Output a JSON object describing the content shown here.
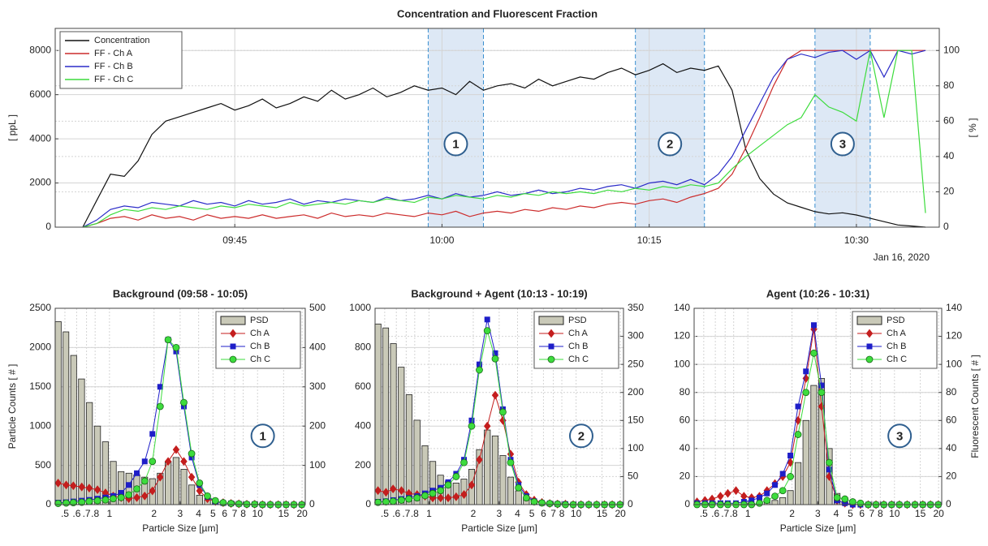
{
  "chart_data": [
    {
      "type": "line",
      "title": "Concentration and Fluorescent Fraction",
      "ylabel": "[ ppL ]",
      "y2label": "[ % ]",
      "x_sublabel": "Jan 16, 2020",
      "x": [
        "09:34",
        "09:35",
        "09:36",
        "09:37",
        "09:38",
        "09:39",
        "09:40",
        "09:41",
        "09:42",
        "09:43",
        "09:44",
        "09:45",
        "09:46",
        "09:47",
        "09:48",
        "09:49",
        "09:50",
        "09:51",
        "09:52",
        "09:53",
        "09:54",
        "09:55",
        "09:56",
        "09:57",
        "09:58",
        "09:59",
        "10:00",
        "10:01",
        "10:02",
        "10:03",
        "10:04",
        "10:05",
        "10:06",
        "10:07",
        "10:08",
        "10:09",
        "10:10",
        "10:11",
        "10:12",
        "10:13",
        "10:14",
        "10:15",
        "10:16",
        "10:17",
        "10:18",
        "10:19",
        "10:20",
        "10:21",
        "10:22",
        "10:23",
        "10:24",
        "10:25",
        "10:26",
        "10:27",
        "10:28",
        "10:29",
        "10:30",
        "10:31",
        "10:32",
        "10:33",
        "10:34",
        "10:35"
      ],
      "xlim": [
        "09:32",
        "10:36"
      ],
      "xticks": [
        "09:45",
        "10:00",
        "10:15",
        "10:30"
      ],
      "ylim": [
        0,
        9000
      ],
      "yticks": [
        0,
        2000,
        4000,
        6000,
        8000
      ],
      "y2lim": [
        0,
        112.5
      ],
      "y2ticks": [
        0,
        20,
        40,
        60,
        80,
        100
      ],
      "grid": true,
      "legend": "northwest",
      "regions": [
        {
          "start": "09:59",
          "end": "10:03",
          "label": "1"
        },
        {
          "start": "10:14",
          "end": "10:19",
          "label": "2"
        },
        {
          "start": "10:27",
          "end": "10:31",
          "label": "3"
        }
      ],
      "series": [
        {
          "name": "Concentration",
          "color": "#111111",
          "values": [
            0,
            1200,
            2400,
            2300,
            3000,
            4200,
            4800,
            5000,
            5200,
            5400,
            5600,
            5300,
            5500,
            5800,
            5400,
            5600,
            5900,
            5700,
            6200,
            5800,
            6000,
            6300,
            5900,
            6100,
            6400,
            6200,
            6300,
            6000,
            6600,
            6200,
            6400,
            6500,
            6300,
            6700,
            6400,
            6600,
            6800,
            6700,
            7000,
            7200,
            6900,
            7100,
            7400,
            7000,
            7200,
            7100,
            7300,
            6200,
            3500,
            2200,
            1500,
            1100,
            900,
            700,
            600,
            650,
            550,
            400,
            250,
            100,
            50,
            0
          ]
        },
        {
          "name": "FF - Ch A",
          "color": "#cc2b2b",
          "axis": "y2",
          "values": [
            0,
            2,
            5,
            6,
            4,
            7,
            5,
            6,
            4,
            7,
            5,
            6,
            5,
            7,
            5,
            6,
            7,
            5,
            8,
            6,
            7,
            6,
            8,
            7,
            6,
            8,
            7,
            9,
            6,
            8,
            9,
            8,
            10,
            9,
            11,
            10,
            12,
            11,
            13,
            14,
            13,
            15,
            16,
            14,
            17,
            19,
            22,
            30,
            45,
            62,
            80,
            95,
            100,
            100,
            100,
            100,
            100,
            100,
            100,
            100,
            100,
            100
          ]
        },
        {
          "name": "FF - Ch B",
          "color": "#2b2bc8",
          "axis": "y2",
          "values": [
            0,
            4,
            10,
            12,
            11,
            14,
            13,
            12,
            15,
            13,
            14,
            12,
            15,
            13,
            14,
            16,
            13,
            15,
            14,
            16,
            15,
            14,
            17,
            15,
            16,
            18,
            16,
            19,
            17,
            18,
            20,
            18,
            19,
            21,
            19,
            20,
            22,
            21,
            23,
            24,
            22,
            25,
            26,
            24,
            27,
            24,
            30,
            40,
            55,
            70,
            85,
            95,
            98,
            96,
            99,
            100,
            95,
            100,
            85,
            100,
            98,
            100
          ]
        },
        {
          "name": "FF - Ch C",
          "color": "#3ddc3d",
          "axis": "y2",
          "values": [
            0,
            2,
            7,
            10,
            9,
            11,
            10,
            12,
            11,
            10,
            12,
            11,
            13,
            12,
            11,
            14,
            12,
            13,
            14,
            13,
            15,
            14,
            16,
            15,
            14,
            17,
            16,
            18,
            17,
            16,
            18,
            17,
            19,
            18,
            20,
            19,
            20,
            19,
            21,
            20,
            22,
            21,
            23,
            22,
            24,
            23,
            25,
            33,
            40,
            46,
            52,
            58,
            62,
            75,
            68,
            65,
            60,
            100,
            62,
            100,
            100,
            8
          ]
        }
      ]
    },
    {
      "type": "combo",
      "title": "Background (09:58 - 10:05)",
      "xlabel": "Particle Size [µm]",
      "ylabel": "Particle Counts [ # ]",
      "annotation": "1",
      "x": [
        0.45,
        0.51,
        0.57,
        0.65,
        0.73,
        0.83,
        0.94,
        1.06,
        1.2,
        1.35,
        1.53,
        1.73,
        1.95,
        2.2,
        2.49,
        2.82,
        3.18,
        3.59,
        4.06,
        4.59,
        5.19,
        5.86,
        6.62,
        7.48,
        8.46,
        9.56,
        10.8,
        12.2,
        13.8,
        15.6,
        17.6,
        19.9
      ],
      "xlim": [
        0.43,
        21
      ],
      "log_x": true,
      "xticks": [
        {
          "value": 0.5,
          "label": ".5"
        },
        {
          "value": 0.6,
          "label": ".6"
        },
        {
          "value": 0.7,
          "label": ".7"
        },
        {
          "value": 0.8,
          "label": ".8"
        },
        1,
        2,
        3,
        4,
        5,
        6,
        7,
        8,
        10,
        15,
        20
      ],
      "ylim": [
        0,
        2500
      ],
      "yticks": [
        0,
        500,
        1000,
        1500,
        2000,
        2500
      ],
      "y2lim": [
        0,
        500
      ],
      "y2ticks": [
        0,
        100,
        200,
        300,
        400,
        500
      ],
      "grid": true,
      "legend": "northeast",
      "series": [
        {
          "name": "PSD",
          "type": "bar",
          "color": "#c9c9b8",
          "values": [
            2330,
            2200,
            1900,
            1600,
            1300,
            1000,
            800,
            550,
            420,
            400,
            380,
            350,
            330,
            400,
            550,
            600,
            450,
            250,
            120,
            60,
            30,
            20,
            10,
            8,
            5,
            3,
            2,
            1,
            1,
            0,
            0,
            0
          ]
        },
        {
          "name": "Ch A",
          "type": "line",
          "axis": "y2",
          "marker": "diamond",
          "color": "#c41e1e",
          "values": [
            55,
            50,
            48,
            45,
            42,
            38,
            30,
            22,
            18,
            15,
            18,
            22,
            35,
            70,
            110,
            140,
            110,
            70,
            35,
            15,
            8,
            5,
            3,
            2,
            1,
            1,
            0,
            0,
            0,
            0,
            0,
            0
          ]
        },
        {
          "name": "Ch B",
          "type": "line",
          "axis": "y2",
          "marker": "square",
          "color": "#1e1ec8",
          "values": [
            5,
            6,
            8,
            10,
            12,
            15,
            18,
            22,
            30,
            50,
            80,
            110,
            180,
            300,
            420,
            390,
            250,
            120,
            50,
            20,
            8,
            4,
            3,
            2,
            1,
            1,
            0,
            0,
            0,
            0,
            0,
            0
          ]
        },
        {
          "name": "Ch C",
          "type": "line",
          "axis": "y2",
          "marker": "circle",
          "color": "#3ddc3d",
          "values": [
            3,
            4,
            5,
            6,
            8,
            10,
            12,
            15,
            18,
            25,
            40,
            60,
            110,
            250,
            420,
            400,
            260,
            130,
            55,
            22,
            10,
            5,
            3,
            2,
            1,
            1,
            0,
            0,
            0,
            0,
            0,
            0
          ]
        }
      ]
    },
    {
      "type": "combo",
      "title": "Background + Agent (10:13 - 10:19)",
      "xlabel": "Particle Size [µm]",
      "annotation": "2",
      "x": [
        0.45,
        0.51,
        0.57,
        0.65,
        0.73,
        0.83,
        0.94,
        1.06,
        1.2,
        1.35,
        1.53,
        1.73,
        1.95,
        2.2,
        2.49,
        2.82,
        3.18,
        3.59,
        4.06,
        4.59,
        5.19,
        5.86,
        6.62,
        7.48,
        8.46,
        9.56,
        10.8,
        12.2,
        13.8,
        15.6,
        17.6,
        19.9
      ],
      "xlim": [
        0.43,
        21
      ],
      "log_x": true,
      "xticks": [
        {
          "value": 0.5,
          "label": ".5"
        },
        {
          "value": 0.6,
          "label": ".6"
        },
        {
          "value": 0.7,
          "label": ".7"
        },
        {
          "value": 0.8,
          "label": ".8"
        },
        1,
        2,
        3,
        4,
        5,
        6,
        7,
        8,
        10,
        15,
        20
      ],
      "ylim": [
        0,
        1000
      ],
      "yticks": [
        0,
        200,
        400,
        600,
        800,
        1000
      ],
      "y2lim": [
        0,
        350
      ],
      "y2ticks": [
        0,
        50,
        100,
        150,
        200,
        250,
        300,
        350
      ],
      "grid": true,
      "legend": "northeast",
      "series": [
        {
          "name": "PSD",
          "type": "bar",
          "color": "#c9c9b8",
          "values": [
            920,
            900,
            820,
            700,
            560,
            430,
            300,
            220,
            150,
            120,
            110,
            130,
            180,
            280,
            380,
            350,
            250,
            140,
            70,
            35,
            15,
            8,
            5,
            3,
            2,
            1,
            0,
            0,
            0,
            0,
            0,
            0
          ]
        },
        {
          "name": "Ch A",
          "type": "line",
          "axis": "y2",
          "marker": "diamond",
          "color": "#c41e1e",
          "values": [
            25,
            22,
            28,
            25,
            20,
            18,
            15,
            12,
            12,
            12,
            14,
            18,
            35,
            80,
            140,
            195,
            150,
            90,
            40,
            18,
            8,
            4,
            2,
            1,
            1,
            0,
            0,
            0,
            0,
            0,
            0,
            0
          ]
        },
        {
          "name": "Ch B",
          "type": "line",
          "axis": "y2",
          "marker": "square",
          "color": "#1e1ec8",
          "values": [
            5,
            6,
            8,
            10,
            12,
            15,
            20,
            25,
            30,
            40,
            55,
            80,
            150,
            250,
            330,
            270,
            170,
            80,
            35,
            15,
            6,
            3,
            2,
            1,
            1,
            0,
            0,
            0,
            0,
            0,
            0,
            0
          ]
        },
        {
          "name": "Ch C",
          "type": "line",
          "axis": "y2",
          "marker": "circle",
          "color": "#3ddc3d",
          "values": [
            4,
            5,
            6,
            8,
            10,
            12,
            16,
            20,
            25,
            35,
            50,
            75,
            140,
            240,
            310,
            260,
            165,
            75,
            30,
            12,
            5,
            3,
            2,
            1,
            0,
            0,
            0,
            0,
            0,
            0,
            0,
            0
          ]
        }
      ]
    },
    {
      "type": "combo",
      "title": "Agent (10:26 - 10:31)",
      "xlabel": "Particle Size [µm]",
      "y2label": "Fluorescent Counts [ # ]",
      "annotation": "3",
      "x": [
        0.45,
        0.51,
        0.57,
        0.65,
        0.73,
        0.83,
        0.94,
        1.06,
        1.2,
        1.35,
        1.53,
        1.73,
        1.95,
        2.2,
        2.49,
        2.82,
        3.18,
        3.59,
        4.06,
        4.59,
        5.19,
        5.86,
        6.62,
        7.48,
        8.46,
        9.56,
        10.8,
        12.2,
        13.8,
        15.6,
        17.6,
        19.9
      ],
      "xlim": [
        0.43,
        21
      ],
      "log_x": true,
      "xticks": [
        {
          "value": 0.5,
          "label": ".5"
        },
        {
          "value": 0.6,
          "label": ".6"
        },
        {
          "value": 0.7,
          "label": ".7"
        },
        {
          "value": 0.8,
          "label": ".8"
        },
        1,
        2,
        3,
        4,
        5,
        6,
        7,
        8,
        10,
        15,
        20
      ],
      "ylim": [
        0,
        140
      ],
      "yticks": [
        0,
        20,
        40,
        60,
        80,
        100,
        120,
        140
      ],
      "y2lim": [
        0,
        140
      ],
      "y2ticks": [
        0,
        20,
        40,
        60,
        80,
        100,
        120,
        140
      ],
      "grid": true,
      "legend": "northeast",
      "series": [
        {
          "name": "PSD",
          "type": "bar",
          "color": "#c9c9b8",
          "values": [
            0,
            0,
            0,
            0,
            0,
            0,
            0,
            0,
            1,
            2,
            3,
            5,
            10,
            30,
            60,
            85,
            90,
            40,
            8,
            2,
            1,
            0,
            0,
            0,
            0,
            0,
            0,
            0,
            0,
            0,
            0,
            0
          ]
        },
        {
          "name": "Ch A",
          "type": "line",
          "axis": "y2",
          "marker": "diamond",
          "color": "#c41e1e",
          "values": [
            2,
            3,
            4,
            6,
            8,
            10,
            6,
            5,
            6,
            10,
            15,
            20,
            30,
            60,
            90,
            125,
            70,
            20,
            3,
            1,
            0,
            0,
            0,
            0,
            0,
            0,
            0,
            0,
            0,
            0,
            0,
            0
          ]
        },
        {
          "name": "Ch B",
          "type": "line",
          "axis": "y2",
          "marker": "square",
          "color": "#1e1ec8",
          "values": [
            1,
            1,
            1,
            1,
            1,
            1,
            2,
            3,
            5,
            8,
            14,
            22,
            35,
            70,
            95,
            128,
            85,
            25,
            3,
            1,
            0,
            0,
            0,
            0,
            0,
            0,
            0,
            0,
            0,
            0,
            0,
            0
          ]
        },
        {
          "name": "Ch C",
          "type": "line",
          "axis": "y2",
          "marker": "circle",
          "color": "#3ddc3d",
          "values": [
            0,
            0,
            0,
            0,
            0,
            0,
            0,
            0,
            1,
            3,
            6,
            10,
            20,
            50,
            80,
            108,
            80,
            30,
            5,
            4,
            2,
            1,
            0,
            0,
            0,
            0,
            0,
            0,
            0,
            0,
            0,
            0
          ]
        }
      ]
    }
  ]
}
